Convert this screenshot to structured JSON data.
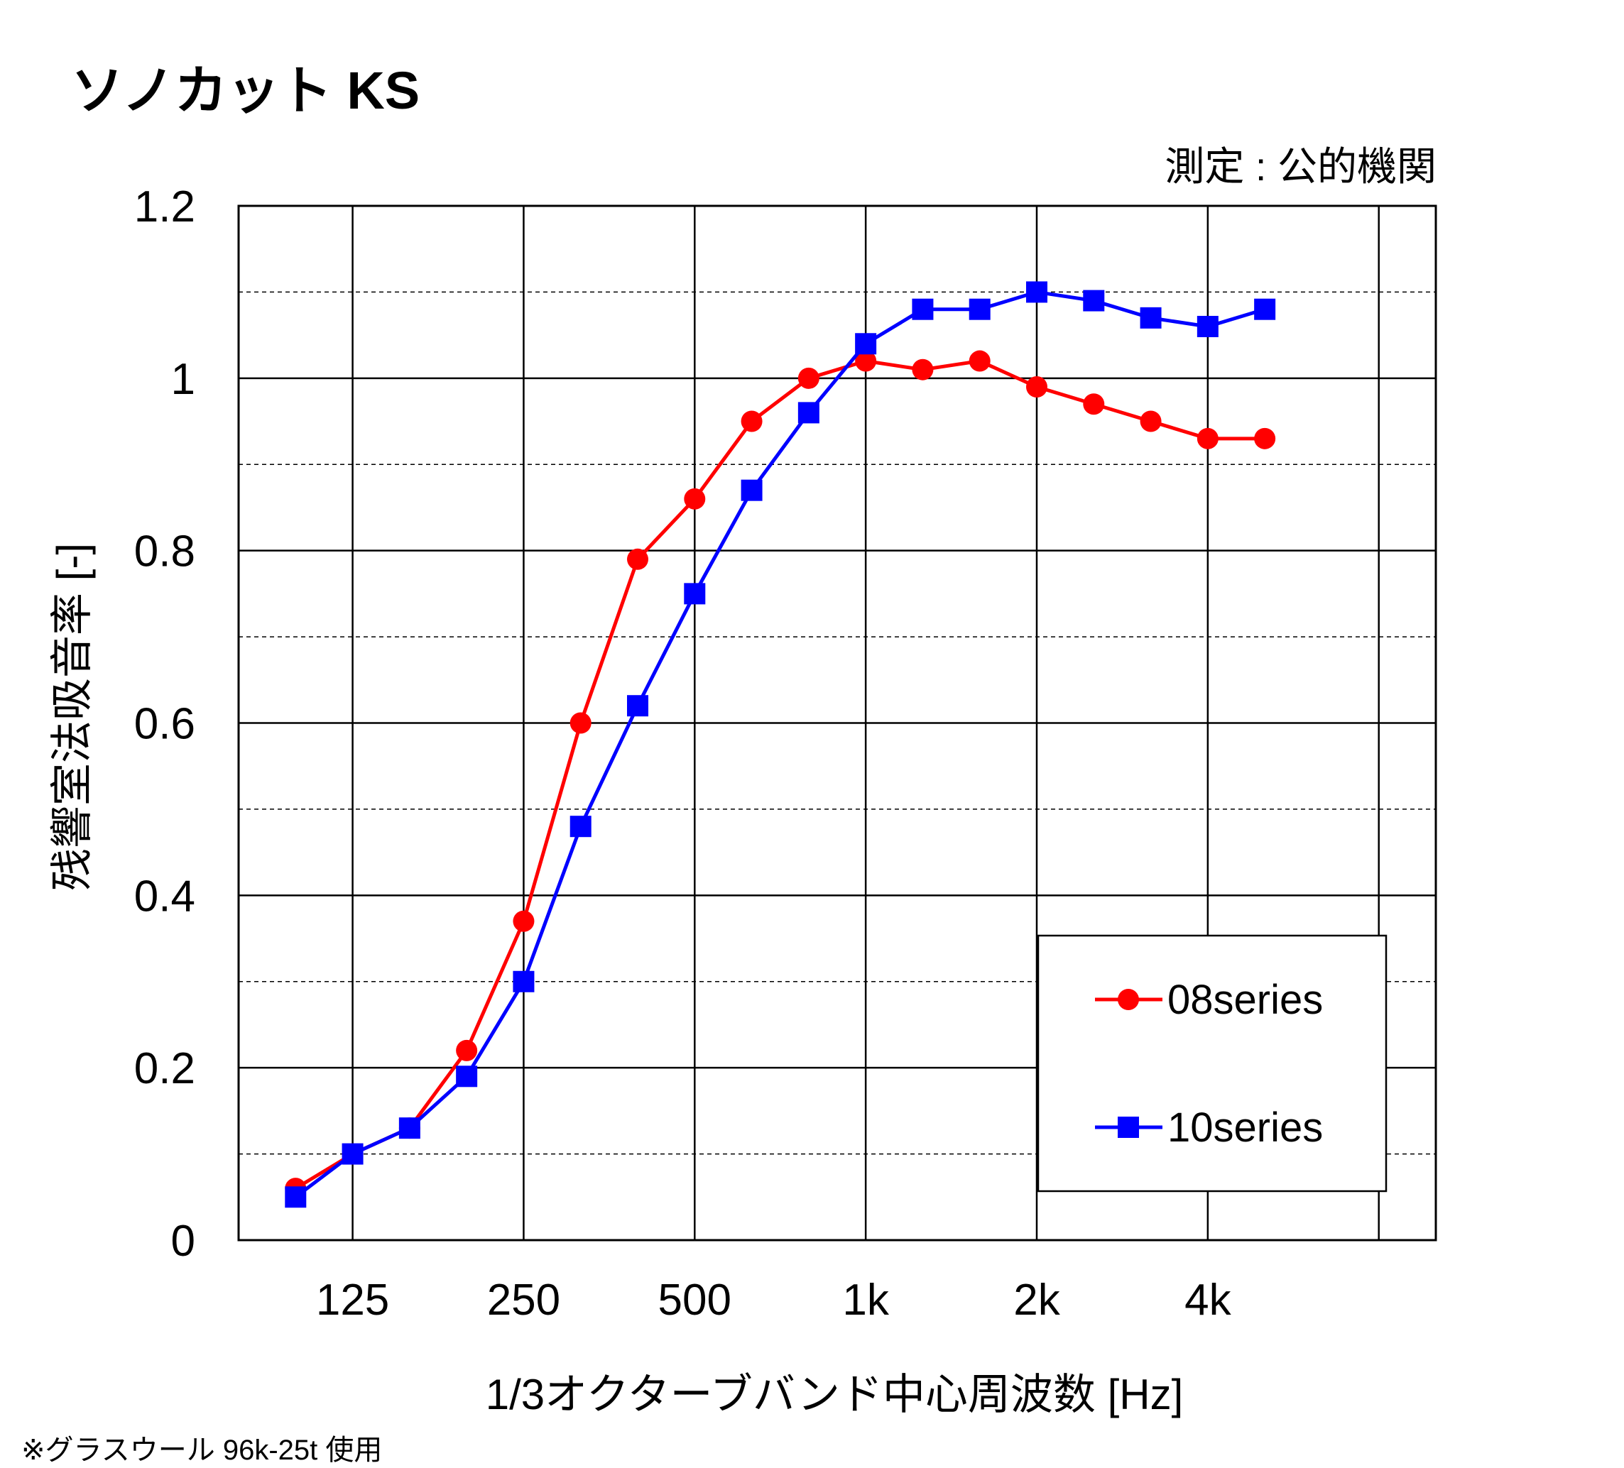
{
  "title": "ソノカット KS",
  "source_note": "測定 : 公的機関",
  "footnote": "※グラスウール 96k-25t 使用",
  "chart_data": {
    "type": "line",
    "xlabel": "1/3オクターブバンド中心周波数 [Hz]",
    "ylabel": "残響室法吸音率 [-]",
    "ylim": [
      0,
      1.2
    ],
    "yticks": [
      "0",
      "0.2",
      "0.4",
      "0.6",
      "0.8",
      "1",
      "1.2"
    ],
    "xtick_labels": [
      "125",
      "250",
      "500",
      "1k",
      "2k",
      "4k"
    ],
    "x": [
      100,
      125,
      160,
      200,
      250,
      315,
      400,
      500,
      630,
      800,
      1000,
      1250,
      1600,
      2000,
      2500,
      3150,
      4000,
      5000
    ],
    "grid": true,
    "legend_position": "bottom-right",
    "series": [
      {
        "name": "08series",
        "color": "#ff0000",
        "marker": "circle",
        "values": [
          0.06,
          0.1,
          0.13,
          0.22,
          0.37,
          0.6,
          0.79,
          0.86,
          0.95,
          1.0,
          1.02,
          1.01,
          1.02,
          0.99,
          0.97,
          0.95,
          0.93,
          0.93
        ]
      },
      {
        "name": "10series",
        "color": "#0000ff",
        "marker": "square",
        "values": [
          0.05,
          0.1,
          0.13,
          0.19,
          0.3,
          0.48,
          0.62,
          0.75,
          0.87,
          0.96,
          1.04,
          1.08,
          1.08,
          1.1,
          1.09,
          1.07,
          1.06,
          1.08
        ]
      }
    ]
  }
}
